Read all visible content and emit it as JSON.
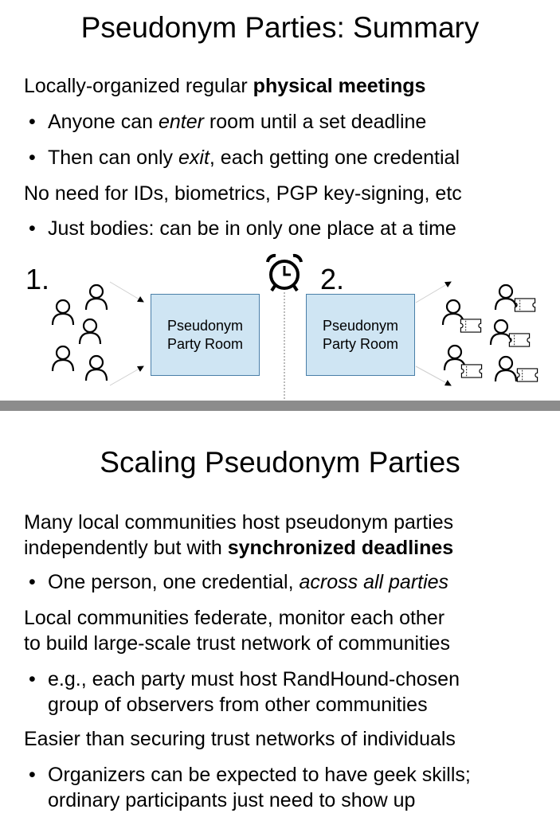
{
  "slide1": {
    "title": "Pseudonym Parties: Summary",
    "l1": {
      "pre": "Locally-organized regular ",
      "bold": "physical meetings"
    },
    "b1": {
      "bullet": "•",
      "pre": "Anyone can ",
      "em": "enter",
      "post": " room until a set deadline"
    },
    "b2": {
      "bullet": "•",
      "pre": "Then can only ",
      "em": "exit",
      "post": ", each getting one credential"
    },
    "l2": "No need for IDs, biometrics, PGP key-signing, etc",
    "b3": {
      "bullet": "•",
      "text": "Just bodies: can be in only one place at a time"
    },
    "diagram": {
      "step1": "1.",
      "step2": "2.",
      "room_line1": "Pseudonym",
      "room_line2": "Party Room",
      "person_icon": "person-icon",
      "clock_icon": "alarm-clock-icon",
      "ticket_icon": "ticket-icon"
    }
  },
  "slide2": {
    "title": "Scaling Pseudonym Parties",
    "p1a": "Many local communities host pseudonym parties",
    "p1b": {
      "pre": "independently but with ",
      "bold": "synchronized deadlines"
    },
    "b1": {
      "bullet": "•",
      "pre": "One person, one credential, ",
      "em": "across all parties"
    },
    "p2a": "Local communities federate, monitor each other",
    "p2b": "to build large-scale trust network of communities",
    "b2": {
      "bullet": "•",
      "line1": "e.g., each party must host RandHound-chosen",
      "line2": "group of observers from other communities"
    },
    "p3": "Easier than securing trust networks of individuals",
    "b3": {
      "bullet": "•",
      "line1": "Organizers can be expected to have geek skills;",
      "line2": "ordinary participants just need to show up"
    }
  },
  "colors": {
    "room_fill": "#cfe5f3",
    "room_border": "#4a7fa8",
    "divider": "#8c8c8c"
  }
}
